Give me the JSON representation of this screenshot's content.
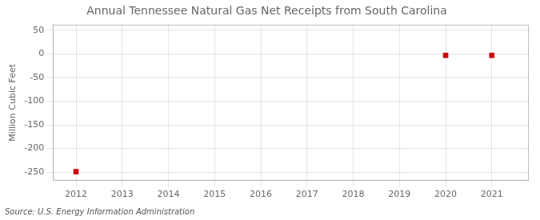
{
  "chart_data": {
    "type": "scatter",
    "title": "Annual Tennessee Natural Gas Net Receipts from South Carolina",
    "ylabel": "Million Cubic Feet",
    "annotations": [
      "Source: U.S. Energy Information Administration"
    ],
    "x": [
      2012,
      2020,
      2021
    ],
    "values": [
      -249,
      -3,
      -3
    ],
    "color": "#cc0000",
    "marker": "square",
    "xlim": [
      2011.5,
      2021.8
    ],
    "ylim": [
      -268,
      62
    ],
    "xticks": [
      2012,
      2013,
      2014,
      2015,
      2016,
      2017,
      2018,
      2019,
      2020,
      2021
    ],
    "yticks": [
      50,
      0,
      -50,
      -100,
      -150,
      -200,
      -250
    ],
    "grid": true
  }
}
